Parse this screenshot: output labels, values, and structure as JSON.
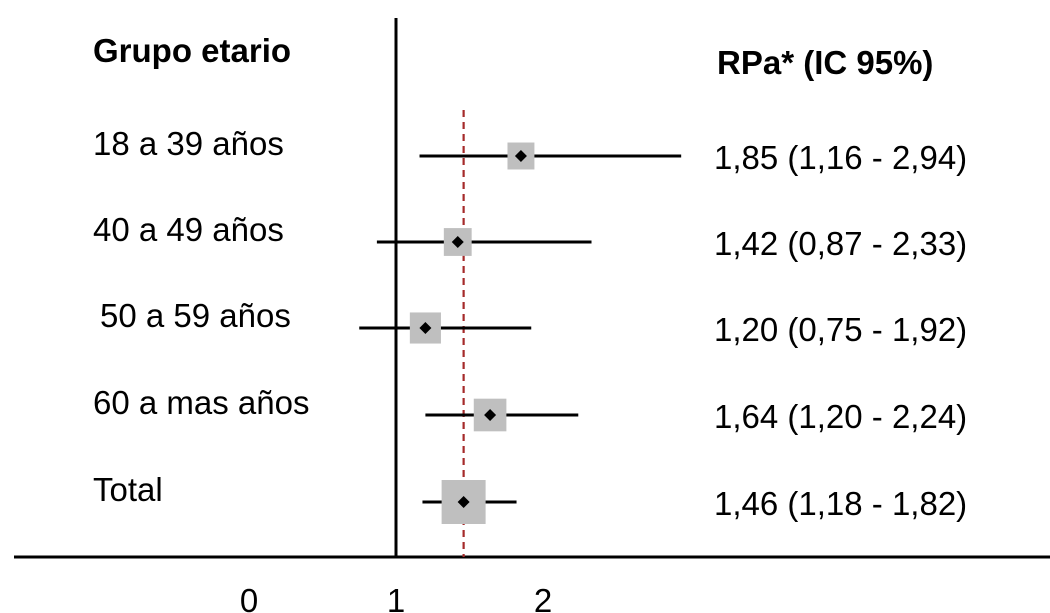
{
  "chart_data": {
    "type": "forest",
    "row_header": "Grupo etario",
    "value_header": "RPa* (IC 95%)",
    "x_ticks": [
      0,
      1,
      2
    ],
    "x_tick_labels": [
      "0",
      "1",
      "2"
    ],
    "xlim": [
      -1.62,
      3.45
    ],
    "null_line": 1,
    "reference_line": 1.46,
    "colors": {
      "box": "#bfbfbf",
      "point": "#000000",
      "ci_line": "#000000",
      "reference_line": "#a52a2a"
    },
    "rows": [
      {
        "label": "18 a 39 años",
        "estimate": 1.85,
        "lower": 1.16,
        "upper": 2.94,
        "value_text": "1,85 (1,16 - 2,94)",
        "weight": 0.15
      },
      {
        "label": "40 a 49 años",
        "estimate": 1.42,
        "lower": 0.87,
        "upper": 2.33,
        "value_text": "1,42 (0,87 - 2,33)",
        "weight": 0.16
      },
      {
        "label": "50 a 59 años",
        "estimate": 1.2,
        "lower": 0.75,
        "upper": 1.92,
        "value_text": "1,20 (0,75 - 1,92)",
        "weight": 0.2
      },
      {
        "label": "60 a mas años",
        "estimate": 1.64,
        "lower": 1.2,
        "upper": 2.24,
        "value_text": "1,64 (1,20 - 2,24)",
        "weight": 0.22
      },
      {
        "label": "Total",
        "estimate": 1.46,
        "lower": 1.18,
        "upper": 1.82,
        "value_text": "1,46 (1,18 - 1,82)",
        "weight": 0.4,
        "is_total": true
      }
    ]
  }
}
